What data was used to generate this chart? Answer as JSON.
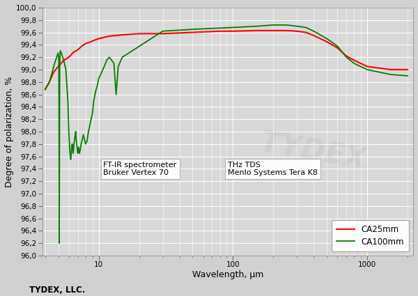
{
  "xlabel": "Wavelength, μm",
  "ylabel": "Degree of polarization, %",
  "footer": "TYDEX, LLC.",
  "annotation1_line1": "FT-IR spectrometer",
  "annotation1_line2": "Bruker Vertex 70",
  "annotation2_line1": "THz TDS",
  "annotation2_line2": "Menlo Systems Tera K8",
  "legend_labels": [
    "CA25mm",
    "CA100mm"
  ],
  "line_colors": [
    "#ff0000",
    "#008000"
  ],
  "background_color": "#d0d0d0",
  "plot_bg_color": "#d8d8d8",
  "ylim": [
    96.0,
    100.0
  ],
  "ytick_step": 0.2,
  "ca25_ftir_x": [
    4.0,
    4.3,
    4.6,
    5.0,
    5.5,
    6.0,
    6.5,
    7.0,
    7.5,
    8.0,
    9.0,
    10.0,
    12.0,
    15.0,
    20.0
  ],
  "ca25_ftir_y": [
    98.68,
    98.8,
    98.95,
    99.05,
    99.15,
    99.2,
    99.28,
    99.32,
    99.38,
    99.42,
    99.46,
    99.5,
    99.54,
    99.56,
    99.58
  ],
  "ca25_thz_x": [
    30.0,
    50.0,
    80.0,
    100.0,
    150.0,
    200.0,
    250.0,
    300.0,
    350.0,
    400.0,
    500.0,
    600.0,
    700.0,
    800.0,
    1000.0,
    1500.0,
    2000.0
  ],
  "ca25_thz_y": [
    99.58,
    99.6,
    99.62,
    99.62,
    99.63,
    99.63,
    99.63,
    99.62,
    99.6,
    99.55,
    99.45,
    99.35,
    99.22,
    99.15,
    99.05,
    99.0,
    99.0
  ],
  "ca100_ftir_x": [
    4.0,
    4.3,
    4.5,
    4.7,
    4.9,
    5.0,
    5.05,
    5.07,
    5.09,
    5.11,
    5.13,
    5.15,
    5.18,
    5.22,
    5.3,
    5.5,
    5.7,
    5.9,
    6.0,
    6.1,
    6.15,
    6.2,
    6.25,
    6.3,
    6.35,
    6.4,
    6.45,
    6.5,
    6.55,
    6.6,
    6.65,
    6.7,
    6.75,
    6.8,
    6.85,
    6.9,
    6.95,
    7.0,
    7.05,
    7.1,
    7.15,
    7.2,
    7.3,
    7.4,
    7.5,
    7.6,
    7.7,
    7.8,
    7.9,
    8.0,
    8.2,
    8.4,
    8.6,
    8.8,
    9.0,
    9.2,
    9.5,
    9.8,
    10.0,
    10.5,
    11.0,
    11.5,
    12.0,
    12.5,
    13.0,
    13.5,
    14.0,
    15.0
  ],
  "ca100_ftir_y": [
    98.68,
    98.8,
    98.95,
    99.1,
    99.22,
    99.27,
    99.15,
    98.4,
    96.2,
    97.8,
    99.0,
    99.2,
    99.3,
    99.3,
    99.25,
    99.15,
    99.0,
    98.5,
    98.0,
    97.7,
    97.6,
    97.55,
    97.65,
    97.75,
    97.8,
    97.75,
    97.65,
    97.7,
    97.8,
    97.85,
    97.9,
    97.95,
    98.0,
    97.9,
    97.8,
    97.75,
    97.7,
    97.65,
    97.7,
    97.75,
    97.7,
    97.65,
    97.7,
    97.8,
    97.85,
    97.9,
    97.95,
    97.9,
    97.85,
    97.8,
    97.85,
    98.0,
    98.1,
    98.2,
    98.3,
    98.5,
    98.65,
    98.75,
    98.85,
    98.95,
    99.05,
    99.15,
    99.2,
    99.15,
    99.1,
    98.6,
    99.05,
    99.2
  ],
  "ca100_thz_x": [
    30.0,
    50.0,
    80.0,
    100.0,
    150.0,
    200.0,
    250.0,
    300.0,
    350.0,
    400.0,
    500.0,
    600.0,
    700.0,
    800.0,
    1000.0,
    1500.0,
    2000.0
  ],
  "ca100_thz_y": [
    99.62,
    99.65,
    99.67,
    99.68,
    99.7,
    99.72,
    99.72,
    99.7,
    99.68,
    99.62,
    99.5,
    99.38,
    99.2,
    99.1,
    99.0,
    98.92,
    98.9
  ],
  "watermark_text": "TYDEX",
  "watermark_color": "#c8c8c8",
  "watermark_alpha": 0.6
}
